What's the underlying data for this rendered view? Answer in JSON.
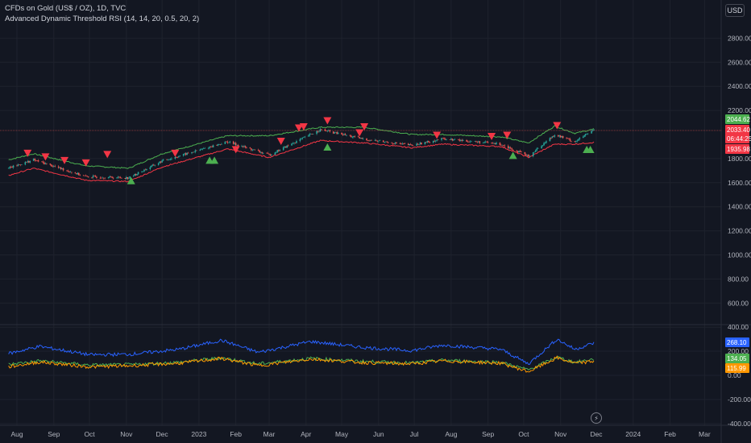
{
  "header": {
    "symbol_line": "CFDs on Gold (US$ / OZ), 1D, TVC",
    "indicator_line": "Advanced Dynamic Threshold RSI (14, 14, 20, 0.5, 20, 2)"
  },
  "currency_button": "USD",
  "goto_realtime_icon": "lightning-icon",
  "colors": {
    "background": "#131722",
    "grid": "#1e222d",
    "candle_up": "#26a69a",
    "candle_down": "#ef5350",
    "upper_band": "#4caf50",
    "lower_band": "#f23645",
    "buy_marker": "#4caf50",
    "sell_marker": "#f23645",
    "rsi_line": "#2962ff",
    "green_line": "#4caf50",
    "orange_line": "#ff9800"
  },
  "price_labels": [
    {
      "value": "2044.62",
      "bg": "#4caf50"
    },
    {
      "value": "2033.40",
      "bg": "#f23645"
    },
    {
      "value": "06:44:25",
      "bg": "#f23645"
    },
    {
      "value": "1935.98",
      "bg": "#f23645"
    }
  ],
  "indicator_labels": [
    {
      "value": "268.10",
      "bg": "#2962ff"
    },
    {
      "value": "134.05",
      "bg": "#4caf50"
    },
    {
      "value": "115.99",
      "bg": "#ff9800"
    }
  ],
  "chart_data": [
    {
      "type": "candlestick",
      "y_ticks": [
        "2800.00",
        "2600.00",
        "2400.00",
        "2200.00",
        "1800.00",
        "1600.00",
        "1400.00",
        "1200.00",
        "1000.00",
        "800.00",
        "600.00",
        "400.00"
      ],
      "x_ticks": [
        "Aug",
        "Sep",
        "Oct",
        "Nov",
        "Dec",
        "2023",
        "Feb",
        "Mar",
        "Apr",
        "May",
        "Jun",
        "Jul",
        "Aug",
        "Sep",
        "Oct",
        "Nov",
        "Dec",
        "2024",
        "Feb",
        "Mar"
      ],
      "close_anchors": [
        {
          "x": "2022-07-25",
          "y": 1720
        },
        {
          "x": "2022-08-15",
          "y": 1790
        },
        {
          "x": "2022-09-28",
          "y": 1650
        },
        {
          "x": "2022-11-03",
          "y": 1640
        },
        {
          "x": "2022-12-01",
          "y": 1780
        },
        {
          "x": "2023-01-25",
          "y": 1940
        },
        {
          "x": "2023-03-01",
          "y": 1830
        },
        {
          "x": "2023-04-13",
          "y": 2040
        },
        {
          "x": "2023-05-20",
          "y": 1960
        },
        {
          "x": "2023-06-29",
          "y": 1910
        },
        {
          "x": "2023-07-25",
          "y": 1965
        },
        {
          "x": "2023-09-12",
          "y": 1920
        },
        {
          "x": "2023-10-05",
          "y": 1820
        },
        {
          "x": "2023-10-27",
          "y": 2000
        },
        {
          "x": "2023-11-13",
          "y": 1940
        },
        {
          "x": "2023-11-29",
          "y": 2040
        }
      ],
      "upper_band_anchors": [
        {
          "x": "2022-07-25",
          "y": 1790
        },
        {
          "x": "2022-08-15",
          "y": 1840
        },
        {
          "x": "2022-09-28",
          "y": 1740
        },
        {
          "x": "2022-11-03",
          "y": 1720
        },
        {
          "x": "2022-12-01",
          "y": 1840
        },
        {
          "x": "2023-01-25",
          "y": 1990
        },
        {
          "x": "2023-03-01",
          "y": 1990
        },
        {
          "x": "2023-04-13",
          "y": 2060
        },
        {
          "x": "2023-05-20",
          "y": 2060
        },
        {
          "x": "2023-06-29",
          "y": 2000
        },
        {
          "x": "2023-07-25",
          "y": 2000
        },
        {
          "x": "2023-09-12",
          "y": 1980
        },
        {
          "x": "2023-10-05",
          "y": 1930
        },
        {
          "x": "2023-10-27",
          "y": 2070
        },
        {
          "x": "2023-11-13",
          "y": 2010
        },
        {
          "x": "2023-11-29",
          "y": 2045
        }
      ],
      "lower_band_anchors": [
        {
          "x": "2022-07-25",
          "y": 1660
        },
        {
          "x": "2022-08-15",
          "y": 1720
        },
        {
          "x": "2022-09-28",
          "y": 1620
        },
        {
          "x": "2022-11-03",
          "y": 1610
        },
        {
          "x": "2022-12-01",
          "y": 1730
        },
        {
          "x": "2023-01-25",
          "y": 1880
        },
        {
          "x": "2023-03-01",
          "y": 1810
        },
        {
          "x": "2023-04-13",
          "y": 1950
        },
        {
          "x": "2023-05-20",
          "y": 1930
        },
        {
          "x": "2023-06-29",
          "y": 1890
        },
        {
          "x": "2023-07-25",
          "y": 1920
        },
        {
          "x": "2023-09-12",
          "y": 1900
        },
        {
          "x": "2023-10-05",
          "y": 1810
        },
        {
          "x": "2023-10-27",
          "y": 1920
        },
        {
          "x": "2023-11-13",
          "y": 1920
        },
        {
          "x": "2023-11-29",
          "y": 1935
        }
      ],
      "sell_signals": [
        {
          "x": "2022-08-10",
          "y": 1840
        },
        {
          "x": "2022-08-25",
          "y": 1810
        },
        {
          "x": "2022-09-10",
          "y": 1780
        },
        {
          "x": "2022-09-28",
          "y": 1760
        },
        {
          "x": "2022-10-16",
          "y": 1830
        },
        {
          "x": "2022-12-12",
          "y": 1840
        },
        {
          "x": "2023-02-01",
          "y": 1870
        },
        {
          "x": "2023-03-11",
          "y": 1940
        },
        {
          "x": "2023-03-26",
          "y": 2050
        },
        {
          "x": "2023-03-30",
          "y": 2060
        },
        {
          "x": "2023-04-19",
          "y": 2110
        },
        {
          "x": "2023-05-16",
          "y": 2010
        },
        {
          "x": "2023-05-20",
          "y": 2060
        },
        {
          "x": "2023-07-20",
          "y": 1990
        },
        {
          "x": "2023-09-04",
          "y": 1980
        },
        {
          "x": "2023-09-17",
          "y": 1990
        },
        {
          "x": "2023-10-29",
          "y": 2070
        }
      ],
      "buy_signals": [
        {
          "x": "2022-11-05",
          "y": 1620
        },
        {
          "x": "2023-01-10",
          "y": 1790
        },
        {
          "x": "2023-01-14",
          "y": 1790
        },
        {
          "x": "2023-04-19",
          "y": 1900
        },
        {
          "x": "2023-09-22",
          "y": 1830
        },
        {
          "x": "2023-11-23",
          "y": 1880
        },
        {
          "x": "2023-11-26",
          "y": 1880
        }
      ]
    },
    {
      "type": "line",
      "y_ticks": [
        "200.00",
        "0.00",
        "-200.00",
        "-400.00"
      ],
      "series": [
        {
          "color": "#2962ff",
          "anchors": [
            {
              "x": "2022-07-25",
              "y": 180
            },
            {
              "x": "2022-08-20",
              "y": 240
            },
            {
              "x": "2022-10-01",
              "y": 170
            },
            {
              "x": "2022-11-05",
              "y": 175
            },
            {
              "x": "2022-12-15",
              "y": 215
            },
            {
              "x": "2023-01-20",
              "y": 290
            },
            {
              "x": "2023-02-20",
              "y": 190
            },
            {
              "x": "2023-04-05",
              "y": 280
            },
            {
              "x": "2023-05-20",
              "y": 230
            },
            {
              "x": "2023-06-29",
              "y": 205
            },
            {
              "x": "2023-07-25",
              "y": 250
            },
            {
              "x": "2023-09-12",
              "y": 215
            },
            {
              "x": "2023-10-05",
              "y": 95
            },
            {
              "x": "2023-10-29",
              "y": 300
            },
            {
              "x": "2023-11-13",
              "y": 215
            },
            {
              "x": "2023-11-29",
              "y": 268
            }
          ]
        },
        {
          "color": "#4caf50",
          "anchors": [
            {
              "x": "2022-07-25",
              "y": 90
            },
            {
              "x": "2022-08-20",
              "y": 120
            },
            {
              "x": "2022-10-01",
              "y": 85
            },
            {
              "x": "2022-11-05",
              "y": 88
            },
            {
              "x": "2022-12-15",
              "y": 108
            },
            {
              "x": "2023-01-20",
              "y": 145
            },
            {
              "x": "2023-02-20",
              "y": 95
            },
            {
              "x": "2023-04-05",
              "y": 140
            },
            {
              "x": "2023-05-20",
              "y": 115
            },
            {
              "x": "2023-06-29",
              "y": 102
            },
            {
              "x": "2023-07-25",
              "y": 125
            },
            {
              "x": "2023-09-12",
              "y": 108
            },
            {
              "x": "2023-10-05",
              "y": 45
            },
            {
              "x": "2023-10-29",
              "y": 150
            },
            {
              "x": "2023-11-13",
              "y": 108
            },
            {
              "x": "2023-11-29",
              "y": 134
            }
          ]
        },
        {
          "color": "#ff9800",
          "anchors": [
            {
              "x": "2022-07-25",
              "y": 70
            },
            {
              "x": "2022-08-20",
              "y": 110
            },
            {
              "x": "2022-10-01",
              "y": 70
            },
            {
              "x": "2022-11-05",
              "y": 80
            },
            {
              "x": "2022-12-15",
              "y": 100
            },
            {
              "x": "2023-01-20",
              "y": 140
            },
            {
              "x": "2023-02-20",
              "y": 80
            },
            {
              "x": "2023-04-05",
              "y": 135
            },
            {
              "x": "2023-05-20",
              "y": 105
            },
            {
              "x": "2023-06-29",
              "y": 95
            },
            {
              "x": "2023-07-25",
              "y": 120
            },
            {
              "x": "2023-09-12",
              "y": 100
            },
            {
              "x": "2023-10-05",
              "y": 30
            },
            {
              "x": "2023-10-29",
              "y": 145
            },
            {
              "x": "2023-11-13",
              "y": 100
            },
            {
              "x": "2023-11-29",
              "y": 116
            }
          ]
        }
      ]
    }
  ]
}
